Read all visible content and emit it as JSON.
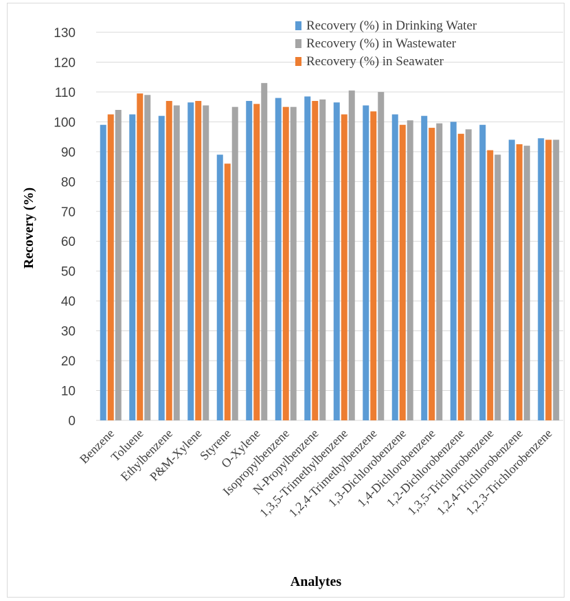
{
  "chart_data": {
    "type": "bar",
    "xlabel": "Analytes",
    "ylabel": "Recovery  (%)",
    "ylim": [
      0,
      130
    ],
    "yticks": [
      0,
      10,
      20,
      30,
      40,
      50,
      60,
      70,
      80,
      90,
      100,
      110,
      120,
      130
    ],
    "grid": true,
    "legend_position": "top-right",
    "categories": [
      "Benzene",
      "Toluene",
      "Ethylbenzene",
      "P&M-Xylene",
      "Styrene",
      "O-Xylene",
      "Isopropylbenzene",
      "N-Propylbenzene",
      "1,3,5-Trimethylbenzene",
      "1,2,4-Trimethylbenzene",
      "1,3-Dichlorobenzene",
      "1,4-Dichlorobenzene",
      "1,2-Dichlorobenzene",
      "1,3,5-Trichlorobenzene",
      "1,2,4-Trichlorobenzene",
      "1,2,3-Trichlorobenzene"
    ],
    "series": [
      {
        "name": "Recovery (%) in Drinking Water",
        "color": "#5B9BD5",
        "values": [
          99,
          102.5,
          102,
          106.5,
          89,
          107,
          108,
          108.5,
          106.5,
          105.5,
          102.5,
          102,
          100,
          99,
          94,
          94.5
        ]
      },
      {
        "name": "Recovery (%) in Seawater",
        "color": "#ED7D31",
        "values": [
          102.5,
          109.5,
          107,
          107,
          86,
          106,
          105,
          107,
          102.5,
          103.5,
          99,
          98,
          96,
          90.5,
          92.5,
          94
        ]
      },
      {
        "name": "Recovery (%) in Wastewater",
        "color": "#A5A5A5",
        "values": [
          104,
          109,
          105.5,
          105.5,
          105,
          113,
          105,
          107.5,
          110.5,
          110,
          100.5,
          99.5,
          97.5,
          89,
          92,
          94
        ]
      }
    ],
    "legend_order": [
      "Recovery (%) in Drinking Water",
      "Recovery (%) in Wastewater",
      "Recovery (%) in Seawater"
    ]
  }
}
